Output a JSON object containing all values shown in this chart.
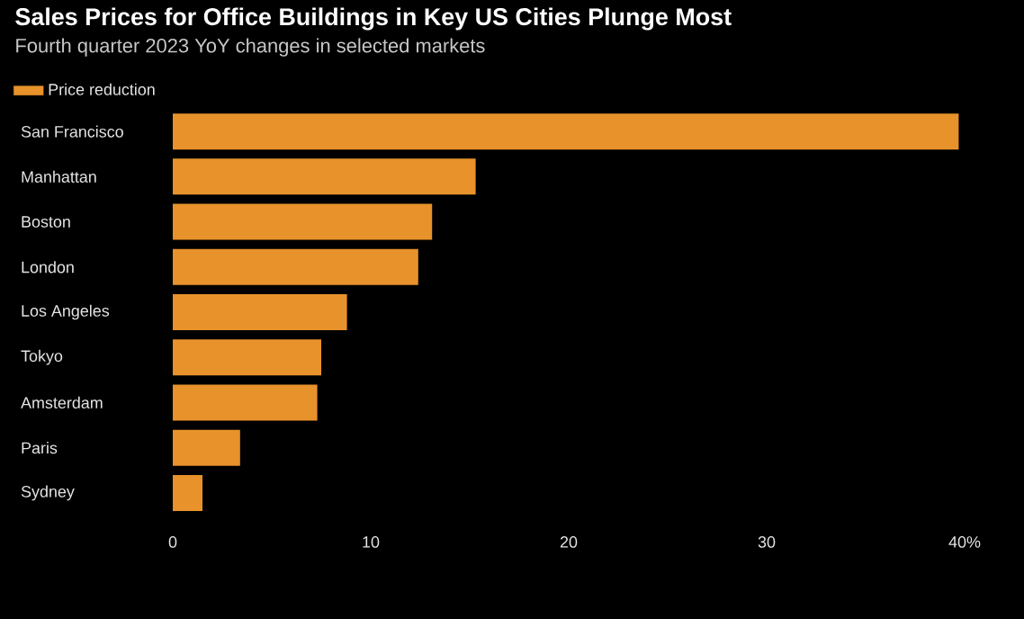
{
  "chart_data": {
    "type": "bar",
    "orientation": "horizontal",
    "title": "Sales Prices for Office Buildings in Key US Cities Plunge Most",
    "subtitle": "Fourth quarter 2023 YoY changes in selected markets",
    "categories": [
      "San Francisco",
      "Manhattan",
      "Boston",
      "London",
      "Los Angeles",
      "Tokyo",
      "Amsterdam",
      "Paris",
      "Sydney"
    ],
    "series": [
      {
        "name": "Price reduction",
        "color": "#e8922b",
        "values": [
          39.7,
          15.3,
          13.1,
          12.4,
          8.8,
          7.5,
          7.3,
          3.4,
          1.5
        ]
      }
    ],
    "xlim": [
      0,
      40
    ],
    "xticks": [
      0,
      10,
      20,
      30,
      {
        "value": 40,
        "label": "40%"
      }
    ],
    "legend": "top left"
  }
}
